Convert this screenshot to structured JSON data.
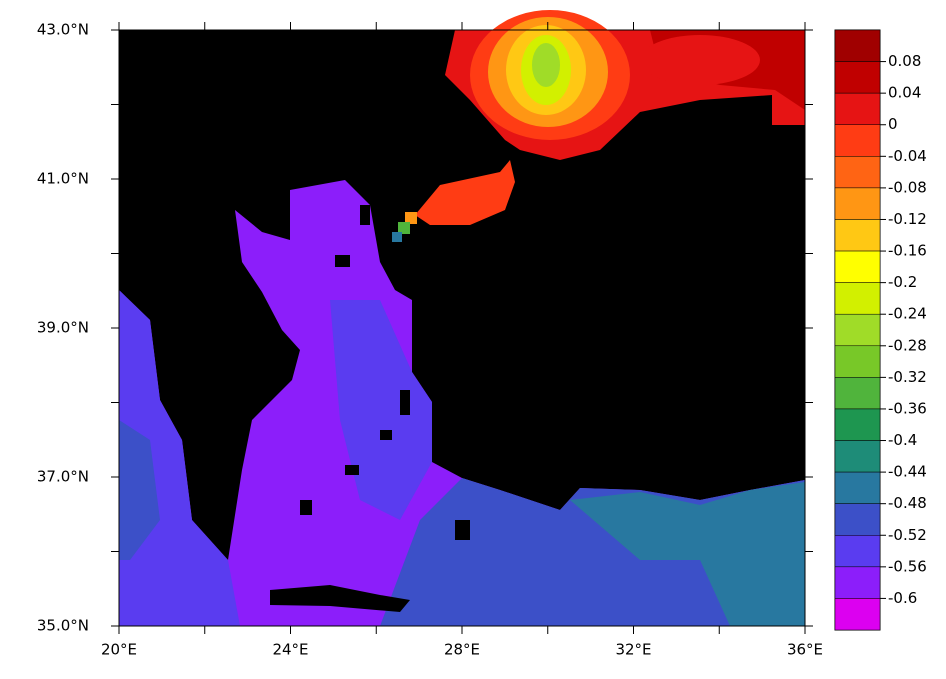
{
  "chart_data": {
    "type": "map",
    "xlim": [
      20,
      36
    ],
    "ylim": [
      35,
      43
    ],
    "xticks": [
      {
        "value": 20,
        "label": "20°E"
      },
      {
        "value": 24,
        "label": "24°E"
      },
      {
        "value": 28,
        "label": "28°E"
      },
      {
        "value": 32,
        "label": "32°E"
      },
      {
        "value": 36,
        "label": "36°E"
      }
    ],
    "yticks": [
      {
        "value": 35,
        "label": "35.0°N"
      },
      {
        "value": 37,
        "label": "37.0°N"
      },
      {
        "value": 39,
        "label": "39.0°N"
      },
      {
        "value": 41,
        "label": "41.0°N"
      },
      {
        "value": 43,
        "label": "43.0°N"
      }
    ],
    "colorbar": {
      "levels": [
        0.08,
        0.04,
        0,
        -0.04,
        -0.08,
        -0.12,
        -0.16,
        -0.2,
        -0.24,
        -0.28,
        -0.32,
        -0.36,
        -0.4,
        -0.44,
        -0.48,
        -0.52,
        -0.56,
        -0.6
      ],
      "colors": [
        "#a00000",
        "#c00000",
        "#e61414",
        "#ff3c14",
        "#ff6414",
        "#ff9614",
        "#ffc814",
        "#ffff00",
        "#d2f000",
        "#a0dc28",
        "#78c828",
        "#50b43c",
        "#1e9650",
        "#1e8c78",
        "#2878a0",
        "#3c50c8",
        "#5a3cf0",
        "#8c1efa",
        "#dc00f0"
      ]
    }
  }
}
